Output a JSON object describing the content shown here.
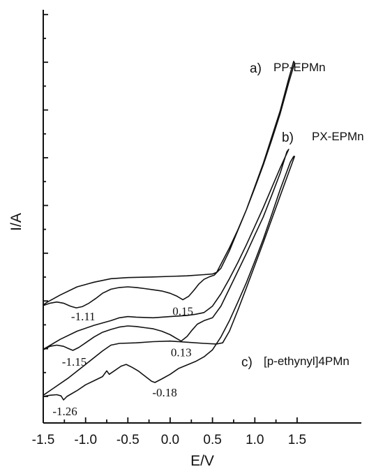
{
  "chart_data": {
    "type": "line",
    "title": "",
    "xlabel": "E/V",
    "ylabel": "I/A",
    "xlim": [
      -1.5,
      1.6
    ],
    "x_ticks": [
      "-1.5",
      "-1.0",
      "-0.5",
      "0.0",
      "0.5",
      "1.0",
      "1.5"
    ],
    "grid": false,
    "series": [
      {
        "id": "a",
        "letter": "a)",
        "name": "PP-EPMn",
        "forward": [
          [
            -1.5,
            1.56
          ],
          [
            -1.42,
            1.6
          ],
          [
            -1.34,
            1.62
          ],
          [
            -1.26,
            1.6
          ],
          [
            -1.18,
            1.55
          ],
          [
            -1.11,
            1.52
          ],
          [
            -1.04,
            1.54
          ],
          [
            -0.96,
            1.6
          ],
          [
            -0.88,
            1.68
          ],
          [
            -0.8,
            1.77
          ],
          [
            -0.7,
            1.84
          ],
          [
            -0.6,
            1.87
          ],
          [
            -0.5,
            1.88
          ],
          [
            -0.4,
            1.87
          ],
          [
            -0.3,
            1.85
          ],
          [
            -0.2,
            1.83
          ],
          [
            -0.1,
            1.81
          ],
          [
            0.0,
            1.77
          ],
          [
            0.08,
            1.72
          ],
          [
            0.15,
            1.66
          ],
          [
            0.22,
            1.72
          ],
          [
            0.28,
            1.82
          ],
          [
            0.34,
            1.93
          ],
          [
            0.4,
            2.01
          ],
          [
            0.46,
            2.05
          ],
          [
            0.52,
            2.08
          ],
          [
            0.6,
            2.2
          ],
          [
            0.7,
            2.5
          ],
          [
            0.8,
            2.85
          ],
          [
            0.9,
            3.2
          ],
          [
            1.0,
            3.6
          ],
          [
            1.1,
            4.0
          ],
          [
            1.2,
            4.45
          ],
          [
            1.3,
            4.9
          ],
          [
            1.4,
            5.45
          ],
          [
            1.46,
            5.75
          ]
        ],
        "reverse": [
          [
            1.47,
            5.72
          ],
          [
            1.4,
            5.38
          ],
          [
            1.3,
            4.85
          ],
          [
            1.2,
            4.4
          ],
          [
            1.1,
            3.97
          ],
          [
            1.0,
            3.58
          ],
          [
            0.9,
            3.2
          ],
          [
            0.8,
            2.86
          ],
          [
            0.7,
            2.55
          ],
          [
            0.6,
            2.27
          ],
          [
            0.55,
            2.13
          ],
          [
            0.5,
            2.1
          ],
          [
            0.4,
            2.09
          ],
          [
            0.2,
            2.07
          ],
          [
            0.0,
            2.06
          ],
          [
            -0.2,
            2.05
          ],
          [
            -0.5,
            2.04
          ],
          [
            -0.7,
            2.02
          ],
          [
            -0.9,
            1.96
          ],
          [
            -1.1,
            1.88
          ],
          [
            -1.3,
            1.74
          ],
          [
            -1.45,
            1.62
          ],
          [
            -1.5,
            1.57
          ]
        ]
      },
      {
        "id": "b",
        "letter": "b)",
        "name": "PX-EPMn",
        "forward": [
          [
            -1.5,
            0.8
          ],
          [
            -1.42,
            0.86
          ],
          [
            -1.34,
            0.88
          ],
          [
            -1.26,
            0.86
          ],
          [
            -1.2,
            0.82
          ],
          [
            -1.15,
            0.79
          ],
          [
            -1.08,
            0.84
          ],
          [
            -1.0,
            0.92
          ],
          [
            -0.9,
            1.02
          ],
          [
            -0.8,
            1.1
          ],
          [
            -0.7,
            1.15
          ],
          [
            -0.6,
            1.19
          ],
          [
            -0.5,
            1.21
          ],
          [
            -0.4,
            1.2
          ],
          [
            -0.3,
            1.18
          ],
          [
            -0.2,
            1.16
          ],
          [
            -0.1,
            1.12
          ],
          [
            0.0,
            1.06
          ],
          [
            0.08,
            0.99
          ],
          [
            0.13,
            0.95
          ],
          [
            0.2,
            1.03
          ],
          [
            0.26,
            1.14
          ],
          [
            0.32,
            1.24
          ],
          [
            0.4,
            1.3
          ],
          [
            0.5,
            1.35
          ],
          [
            0.6,
            1.55
          ],
          [
            0.7,
            1.85
          ],
          [
            0.8,
            2.15
          ],
          [
            0.9,
            2.45
          ],
          [
            1.0,
            2.77
          ],
          [
            1.1,
            3.08
          ],
          [
            1.2,
            3.45
          ],
          [
            1.3,
            3.83
          ],
          [
            1.38,
            4.2
          ]
        ],
        "reverse": [
          [
            1.4,
            4.24
          ],
          [
            1.3,
            3.92
          ],
          [
            1.2,
            3.58
          ],
          [
            1.1,
            3.24
          ],
          [
            1.0,
            2.92
          ],
          [
            0.9,
            2.6
          ],
          [
            0.8,
            2.3
          ],
          [
            0.7,
            2.02
          ],
          [
            0.6,
            1.76
          ],
          [
            0.5,
            1.55
          ],
          [
            0.4,
            1.44
          ],
          [
            0.3,
            1.41
          ],
          [
            0.2,
            1.39
          ],
          [
            0.0,
            1.37
          ],
          [
            -0.2,
            1.35
          ],
          [
            -0.4,
            1.36
          ],
          [
            -0.5,
            1.37
          ],
          [
            -0.6,
            1.35
          ],
          [
            -0.7,
            1.3
          ],
          [
            -0.9,
            1.22
          ],
          [
            -1.1,
            1.12
          ],
          [
            -1.3,
            0.98
          ],
          [
            -1.45,
            0.85
          ],
          [
            -1.5,
            0.81
          ]
        ]
      },
      {
        "id": "c",
        "letter": "c)",
        "name": "[p-ethynyl]4PMn",
        "forward": [
          [
            -1.5,
            0.0
          ],
          [
            -1.42,
            0.02
          ],
          [
            -1.34,
            0.03
          ],
          [
            -1.29,
            0.01
          ],
          [
            -1.26,
            -0.06
          ],
          [
            -1.22,
            0.0
          ],
          [
            -1.1,
            0.1
          ],
          [
            -1.0,
            0.2
          ],
          [
            -0.9,
            0.27
          ],
          [
            -0.8,
            0.34
          ],
          [
            -0.75,
            0.44
          ],
          [
            -0.72,
            0.38
          ],
          [
            -0.66,
            0.44
          ],
          [
            -0.58,
            0.52
          ],
          [
            -0.52,
            0.55
          ],
          [
            -0.45,
            0.5
          ],
          [
            -0.38,
            0.44
          ],
          [
            -0.3,
            0.35
          ],
          [
            -0.22,
            0.26
          ],
          [
            -0.18,
            0.24
          ],
          [
            -0.1,
            0.3
          ],
          [
            0.0,
            0.38
          ],
          [
            0.1,
            0.48
          ],
          [
            0.2,
            0.54
          ],
          [
            0.3,
            0.6
          ],
          [
            0.4,
            0.68
          ],
          [
            0.5,
            0.8
          ],
          [
            0.6,
            1.02
          ],
          [
            0.7,
            1.3
          ],
          [
            0.8,
            1.62
          ],
          [
            0.9,
            1.95
          ],
          [
            1.0,
            2.32
          ],
          [
            1.1,
            2.7
          ],
          [
            1.2,
            3.12
          ],
          [
            1.3,
            3.55
          ],
          [
            1.42,
            4.02
          ],
          [
            1.46,
            4.12
          ]
        ],
        "reverse": [
          [
            1.47,
            4.12
          ],
          [
            1.4,
            3.84
          ],
          [
            1.3,
            3.44
          ],
          [
            1.2,
            3.04
          ],
          [
            1.1,
            2.64
          ],
          [
            1.0,
            2.25
          ],
          [
            0.9,
            1.86
          ],
          [
            0.8,
            1.48
          ],
          [
            0.7,
            1.12
          ],
          [
            0.62,
            0.92
          ],
          [
            0.55,
            0.9
          ],
          [
            0.4,
            0.91
          ],
          [
            0.2,
            0.93
          ],
          [
            0.0,
            0.95
          ],
          [
            -0.2,
            0.94
          ],
          [
            -0.4,
            0.92
          ],
          [
            -0.6,
            0.91
          ],
          [
            -0.7,
            0.88
          ],
          [
            -0.8,
            0.78
          ],
          [
            -1.0,
            0.55
          ],
          [
            -1.2,
            0.32
          ],
          [
            -1.4,
            0.12
          ],
          [
            -1.5,
            0.02
          ]
        ]
      }
    ],
    "annotations": [
      {
        "text": "-1.11",
        "x": -1.11,
        "y": 1.52
      },
      {
        "text": "0.15",
        "x": 0.15,
        "y": 1.66
      },
      {
        "text": "-1.15",
        "x": -1.15,
        "y": 0.79
      },
      {
        "text": "0.13",
        "x": 0.13,
        "y": 0.95
      },
      {
        "text": "-0.18",
        "x": -0.18,
        "y": 0.24
      },
      {
        "text": "-1.26",
        "x": -1.26,
        "y": -0.06
      }
    ]
  }
}
